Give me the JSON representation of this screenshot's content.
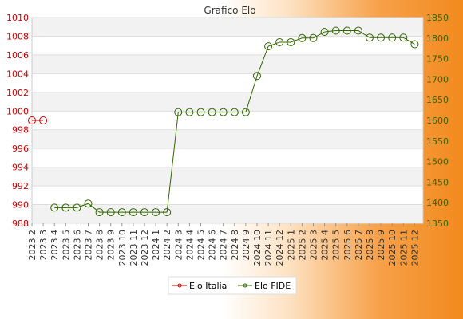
{
  "chart_data": {
    "type": "line",
    "title": "Grafico Elo",
    "categories": [
      "2023 2",
      "2023 3",
      "2023 4",
      "2023 5",
      "2023 6",
      "2023 7",
      "2023 8",
      "2023 9",
      "2023 10",
      "2023 11",
      "2023 12",
      "2024 1",
      "2024 2",
      "2024 3",
      "2024 4",
      "2024 5",
      "2024 6",
      "2024 7",
      "2024 8",
      "2024 9",
      "2024 10",
      "2024 11",
      "2024 12",
      "2025 1",
      "2025 2",
      "2025 3",
      "2025 4",
      "2025 5",
      "2025 6",
      "2025 7",
      "2025 8",
      "2025 9",
      "2025 10",
      "2025 11",
      "2025 12"
    ],
    "y_left": {
      "ticks": [
        "988",
        "990",
        "992",
        "994",
        "996",
        "998",
        "1000",
        "1002",
        "1004",
        "1006",
        "1008",
        "1010"
      ],
      "range": [
        988,
        1010
      ]
    },
    "y_right": {
      "ticks": [
        "1350",
        "1400",
        "1450",
        "1500",
        "1550",
        "1600",
        "1650",
        "1700",
        "1750",
        "1800",
        "1850"
      ],
      "range": [
        1350,
        1850
      ]
    },
    "series": [
      {
        "name": "Elo Italia",
        "axis": "left",
        "color": "#cc0000",
        "values": [
          999,
          999,
          null,
          null,
          null,
          null,
          null,
          null,
          null,
          null,
          null,
          null,
          null,
          null,
          null,
          null,
          null,
          null,
          null,
          null,
          null,
          null,
          null,
          null,
          null,
          null,
          null,
          null,
          null,
          null,
          null,
          null,
          null,
          null,
          null
        ]
      },
      {
        "name": "Elo FIDE",
        "axis": "right",
        "color": "#336600",
        "values": [
          null,
          null,
          1388,
          1388,
          1388,
          1398,
          1377,
          1377,
          1377,
          1377,
          1377,
          1377,
          1377,
          1620,
          1620,
          1620,
          1620,
          1620,
          1620,
          1620,
          1708,
          1780,
          1790,
          1790,
          1800,
          1800,
          1815,
          1818,
          1818,
          1818,
          1801,
          1801,
          1801,
          1801,
          1785
        ]
      }
    ],
    "grid": true,
    "legend": "bottom"
  }
}
